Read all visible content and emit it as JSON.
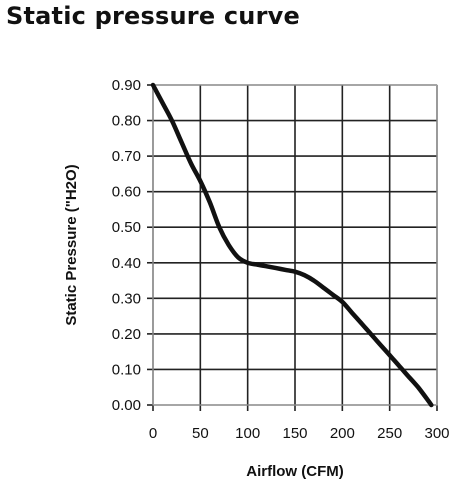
{
  "title": "Static pressure curve",
  "chart_data": {
    "type": "line",
    "xlabel": "Airflow (CFM)",
    "ylabel": "Static Pressure (\"H2O)",
    "xlim": [
      0,
      300
    ],
    "ylim": [
      0,
      0.9
    ],
    "x_ticks": [
      "0",
      "50",
      "100",
      "150",
      "200",
      "250",
      "300"
    ],
    "y_ticks": [
      "0.00",
      "0.10",
      "0.20",
      "0.30",
      "0.40",
      "0.50",
      "0.60",
      "0.70",
      "0.80",
      "0.90"
    ],
    "grid": true,
    "series": [
      {
        "x": [
          0,
          10,
          20,
          30,
          40,
          50,
          60,
          70,
          80,
          90,
          100,
          110,
          120,
          130,
          140,
          150,
          160,
          170,
          180,
          190,
          200,
          210,
          220,
          230,
          240,
          250,
          260,
          270,
          280,
          290,
          294
        ],
        "y": [
          0.9,
          0.85,
          0.8,
          0.74,
          0.68,
          0.63,
          0.57,
          0.5,
          0.45,
          0.415,
          0.4,
          0.395,
          0.39,
          0.385,
          0.38,
          0.375,
          0.365,
          0.35,
          0.33,
          0.31,
          0.29,
          0.26,
          0.23,
          0.2,
          0.17,
          0.14,
          0.11,
          0.08,
          0.05,
          0.015,
          0.0
        ]
      }
    ],
    "line_color": "#111111",
    "grid_color": "#222222"
  }
}
